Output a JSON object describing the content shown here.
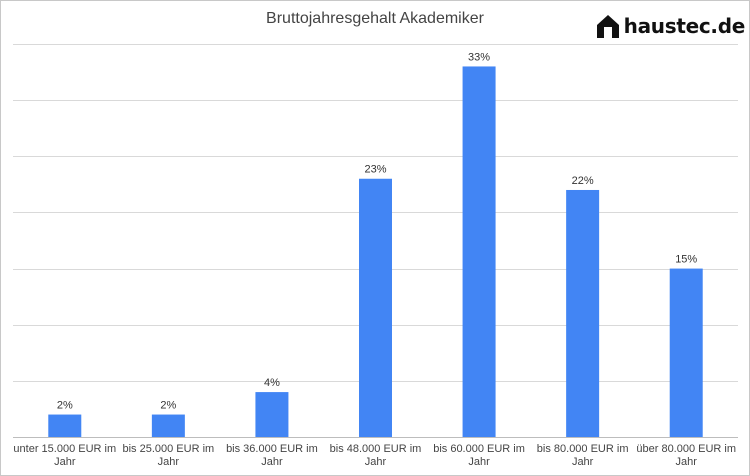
{
  "chart_data": {
    "type": "bar",
    "title": "Bruttojahresgehalt Akademiker",
    "categories": [
      "unter 15.000 EUR im Jahr",
      "bis 25.000 EUR im Jahr",
      "bis 36.000 EUR im Jahr",
      "bis 48.000 EUR im Jahr",
      "bis 60.000 EUR im Jahr",
      "bis 80.000 EUR im Jahr",
      "über 80.000 EUR im Jahr"
    ],
    "category_lines": [
      [
        "unter 15.000 EUR im",
        "Jahr"
      ],
      [
        "bis 25.000 EUR im",
        "Jahr"
      ],
      [
        "bis 36.000 EUR im",
        "Jahr"
      ],
      [
        "bis 48.000 EUR im",
        "Jahr"
      ],
      [
        "bis 60.000 EUR im",
        "Jahr"
      ],
      [
        "bis 80.000 EUR im",
        "Jahr"
      ],
      [
        "über 80.000 EUR im",
        "Jahr"
      ]
    ],
    "values": [
      2,
      2,
      4,
      23,
      33,
      22,
      15
    ],
    "data_labels": [
      "2%",
      "2%",
      "4%",
      "23%",
      "33%",
      "22%",
      "15%"
    ],
    "ylim": [
      0,
      35
    ],
    "y_grid_step": 5,
    "grid": true,
    "legend": "none",
    "bar_color": "#4285f4",
    "grid_color": "#d9d9d9"
  },
  "logo": {
    "text": "haustec.de"
  }
}
